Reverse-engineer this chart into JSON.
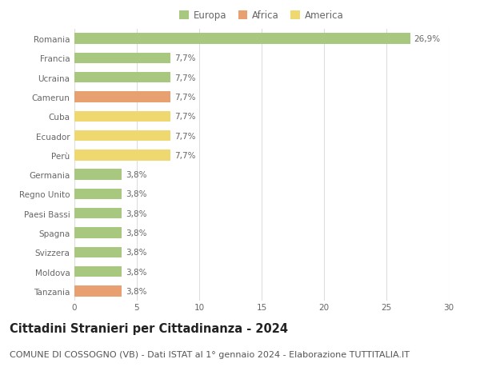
{
  "categories": [
    "Romania",
    "Francia",
    "Ucraina",
    "Camerun",
    "Cuba",
    "Ecuador",
    "Perù",
    "Germania",
    "Regno Unito",
    "Paesi Bassi",
    "Spagna",
    "Svizzera",
    "Moldova",
    "Tanzania"
  ],
  "values": [
    26.9,
    7.7,
    7.7,
    7.7,
    7.7,
    7.7,
    7.7,
    3.8,
    3.8,
    3.8,
    3.8,
    3.8,
    3.8,
    3.8
  ],
  "labels": [
    "26,9%",
    "7,7%",
    "7,7%",
    "7,7%",
    "7,7%",
    "7,7%",
    "7,7%",
    "3,8%",
    "3,8%",
    "3,8%",
    "3,8%",
    "3,8%",
    "3,8%",
    "3,8%"
  ],
  "colors": [
    "#a8c880",
    "#a8c880",
    "#a8c880",
    "#e8a070",
    "#f0d870",
    "#f0d870",
    "#f0d870",
    "#a8c880",
    "#a8c880",
    "#a8c880",
    "#a8c880",
    "#a8c880",
    "#a8c880",
    "#e8a070"
  ],
  "legend_labels": [
    "Europa",
    "Africa",
    "America"
  ],
  "legend_colors": [
    "#a8c880",
    "#e8a070",
    "#f0d870"
  ],
  "xlim": [
    0,
    30
  ],
  "xticks": [
    0,
    5,
    10,
    15,
    20,
    25,
    30
  ],
  "title": "Cittadini Stranieri per Cittadinanza - 2024",
  "subtitle": "COMUNE DI COSSOGNO (VB) - Dati ISTAT al 1° gennaio 2024 - Elaborazione TUTTITALIA.IT",
  "title_fontsize": 10.5,
  "subtitle_fontsize": 8,
  "label_fontsize": 7.5,
  "tick_fontsize": 7.5,
  "legend_fontsize": 8.5,
  "background_color": "#ffffff",
  "grid_color": "#dddddd",
  "bar_height": 0.55
}
